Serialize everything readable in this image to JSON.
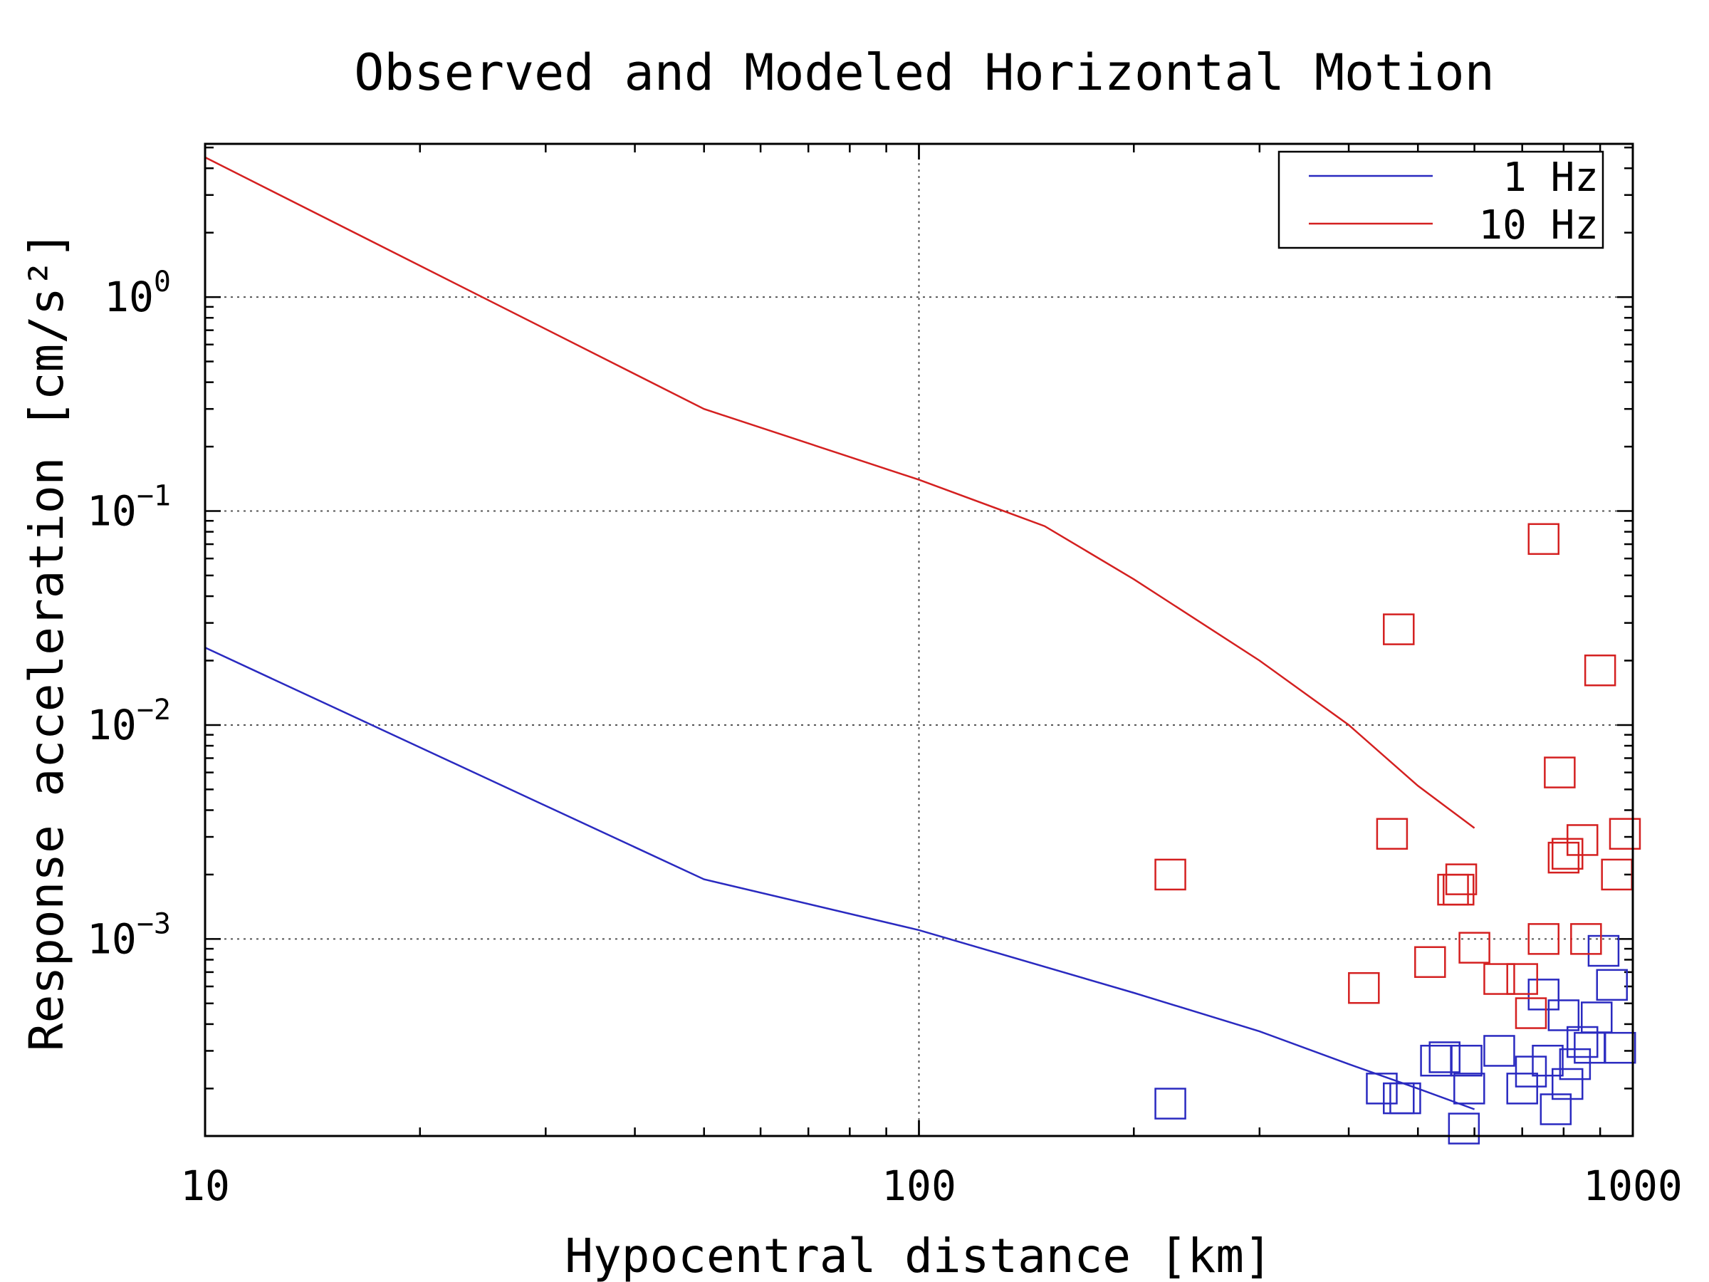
{
  "chart_data": {
    "type": "scatter",
    "title": "Observed and Modeled Horizontal Motion",
    "xlabel": "Hypocentral distance [km]",
    "ylabel": "Response acceleration [cm/s²]",
    "x_scale": "log",
    "y_scale": "log",
    "xlim": [
      10,
      1000
    ],
    "ylim": [
      0.00012,
      5.2
    ],
    "x_ticks": [
      {
        "value": 10,
        "label": "10"
      },
      {
        "value": 100,
        "label": "100"
      },
      {
        "value": 1000,
        "label": "1000"
      }
    ],
    "y_ticks": [
      {
        "value": 1,
        "base": "10",
        "exp": "0"
      },
      {
        "value": 0.1,
        "base": "10",
        "exp": "−1"
      },
      {
        "value": 0.01,
        "base": "10",
        "exp": "−2"
      },
      {
        "value": 0.001,
        "base": "10",
        "exp": "−3"
      }
    ],
    "grid": true,
    "legend_position": "top-right",
    "series": [
      {
        "name": "1 Hz",
        "color": "#2a2ac0",
        "model_line": [
          [
            10,
            0.023
          ],
          [
            50,
            0.0019
          ],
          [
            100,
            0.0011
          ],
          [
            200,
            0.00056
          ],
          [
            300,
            0.00037
          ],
          [
            400,
            0.00026
          ],
          [
            500,
            0.0002
          ],
          [
            600,
            0.00016
          ]
        ],
        "observed": [
          [
            225,
            0.00017
          ],
          [
            445,
            0.0002
          ],
          [
            470,
            0.00018
          ],
          [
            480,
            0.00018
          ],
          [
            530,
            0.00027
          ],
          [
            545,
            0.00028
          ],
          [
            580,
            0.00013
          ],
          [
            585,
            0.00027
          ],
          [
            590,
            0.0002
          ],
          [
            650,
            0.0003
          ],
          [
            700,
            0.0002
          ],
          [
            720,
            0.00024
          ],
          [
            750,
            0.00055
          ],
          [
            760,
            0.00027
          ],
          [
            780,
            0.00016
          ],
          [
            800,
            0.00044
          ],
          [
            810,
            0.00021
          ],
          [
            830,
            0.00026
          ],
          [
            850,
            0.00033
          ],
          [
            870,
            0.00031
          ],
          [
            890,
            0.00043
          ],
          [
            910,
            0.00088
          ],
          [
            935,
            0.00061
          ],
          [
            960,
            0.00031
          ]
        ]
      },
      {
        "name": "10 Hz",
        "color": "#d42020",
        "model_line": [
          [
            10,
            4.5
          ],
          [
            50,
            0.3
          ],
          [
            100,
            0.14
          ],
          [
            150,
            0.085
          ],
          [
            200,
            0.048
          ],
          [
            300,
            0.02
          ],
          [
            400,
            0.01
          ],
          [
            500,
            0.0052
          ],
          [
            600,
            0.0033
          ]
        ],
        "observed": [
          [
            225,
            0.002
          ],
          [
            420,
            0.00059
          ],
          [
            460,
            0.0031
          ],
          [
            470,
            0.028
          ],
          [
            520,
            0.00078
          ],
          [
            560,
            0.0017
          ],
          [
            570,
            0.0017
          ],
          [
            575,
            0.0019
          ],
          [
            600,
            0.00091
          ],
          [
            650,
            0.00065
          ],
          [
            700,
            0.00065
          ],
          [
            720,
            0.00045
          ],
          [
            750,
            0.001
          ],
          [
            750,
            0.074
          ],
          [
            790,
            0.006
          ],
          [
            800,
            0.0024
          ],
          [
            810,
            0.0025
          ],
          [
            850,
            0.0029
          ],
          [
            860,
            0.001
          ],
          [
            900,
            0.018
          ],
          [
            950,
            0.002
          ],
          [
            975,
            0.0031
          ]
        ]
      }
    ]
  }
}
